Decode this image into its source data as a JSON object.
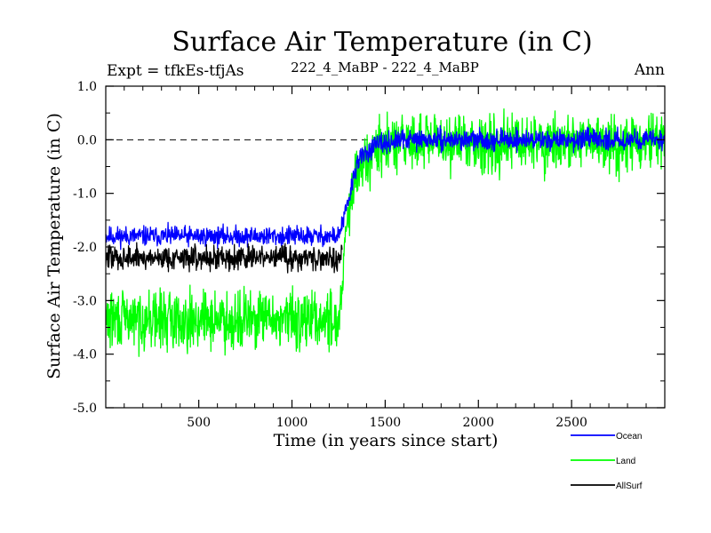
{
  "chart_data": {
    "type": "line",
    "title": "Surface Air Temperature (in C)",
    "subtitle_left": "Expt = tfkEs-tfjAs",
    "subtitle_center": "222_4_MaBP - 222_4_MaBP",
    "subtitle_right": "Ann",
    "xlabel": "Time (in years since start)",
    "ylabel": "Surface Air Temperature (in C)",
    "xlim": [
      1,
      3000
    ],
    "ylim": [
      -5.0,
      1.0
    ],
    "x_ticks": [
      500,
      1000,
      1500,
      2000,
      2500
    ],
    "x_tick_labels": [
      "500",
      "1000",
      "1500",
      "2000",
      "2500"
    ],
    "y_ticks": [
      1.0,
      0.0,
      -1.0,
      -2.0,
      -3.0,
      -4.0,
      -5.0
    ],
    "y_tick_labels": [
      "1.0",
      "0.0",
      "-1.0",
      "-2.0",
      "-3.0",
      "-4.0",
      "-5.0"
    ],
    "reference_line": {
      "y": 0.0,
      "style": "dashed"
    },
    "legend_position": "bottom-right",
    "series": [
      {
        "name": "Ocean",
        "color": "#0000ff",
        "x_range": [
          1,
          3000
        ],
        "approx_values": [
          {
            "x": 1,
            "y": -1.8
          },
          {
            "x": 1250,
            "y": -1.8
          },
          {
            "x": 1300,
            "y": -1.2
          },
          {
            "x": 1350,
            "y": -0.4
          },
          {
            "x": 1450,
            "y": -0.1
          },
          {
            "x": 1600,
            "y": 0.0
          },
          {
            "x": 3000,
            "y": 0.0
          }
        ],
        "noise_amplitude": 0.12
      },
      {
        "name": "Land",
        "color": "#00ff00",
        "x_range": [
          1,
          3000
        ],
        "approx_values": [
          {
            "x": 1,
            "y": -3.35
          },
          {
            "x": 1250,
            "y": -3.35
          },
          {
            "x": 1300,
            "y": -1.5
          },
          {
            "x": 1350,
            "y": -0.6
          },
          {
            "x": 1450,
            "y": -0.2
          },
          {
            "x": 1600,
            "y": -0.05
          },
          {
            "x": 3000,
            "y": -0.05
          }
        ],
        "noise_amplitude": 0.35
      },
      {
        "name": "AllSurf",
        "color": "#000000",
        "x_range": [
          1,
          1270
        ],
        "approx_values": [
          {
            "x": 1,
            "y": -2.2
          },
          {
            "x": 1270,
            "y": -2.2
          }
        ],
        "noise_amplitude": 0.15
      }
    ]
  }
}
